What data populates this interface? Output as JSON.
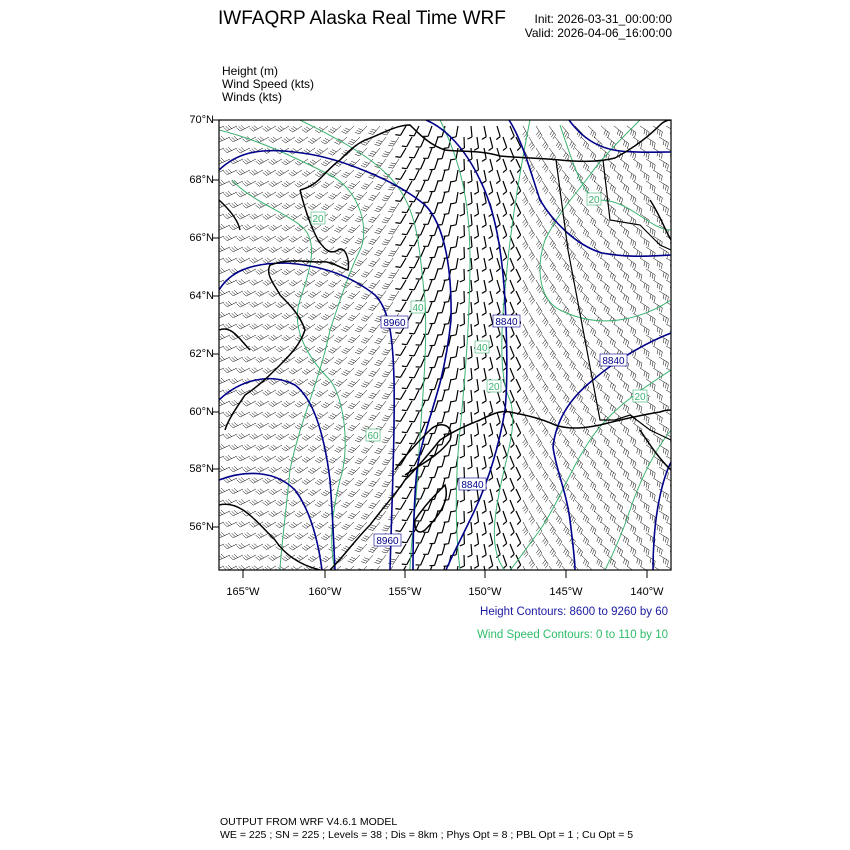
{
  "header": {
    "title": "IWFAQRP Alaska Real Time WRF",
    "init": "Init: 2026-03-31_00:00:00",
    "valid": "Valid: 2026-04-06_16:00:00"
  },
  "fields": [
    "Height   (m)",
    "Wind Speed   (kts)",
    "Winds   (kts)"
  ],
  "axes": {
    "lat_ticks": [
      "70°N",
      "68°N",
      "66°N",
      "64°N",
      "62°N",
      "60°N",
      "58°N",
      "56°N"
    ],
    "lon_ticks": [
      "165°W",
      "160°W",
      "155°W",
      "150°W",
      "145°W",
      "140°W"
    ]
  },
  "contour_labels": {
    "height": [
      "8960",
      "8840",
      "8840",
      "8840",
      "8960"
    ],
    "wind_speed": [
      "20",
      "20",
      "40",
      "40",
      "20",
      "60",
      "20"
    ]
  },
  "legend": {
    "height": "Height Contours: 8600 to 9260 by 60",
    "wind_speed": "Wind Speed Contours: 0 to 110 by 10"
  },
  "colors": {
    "height_contour": "#00008b",
    "wind_speed_contour": "#3cb371",
    "barbs": "#000000"
  },
  "footer": {
    "line1": "OUTPUT FROM WRF V4.6.1 MODEL",
    "line2": "WE = 225 ; SN = 225 ; Levels = 38 ; Dis = 8km ; Phys Opt = 8 ; PBL Opt = 1 ; Cu Opt = 5"
  }
}
